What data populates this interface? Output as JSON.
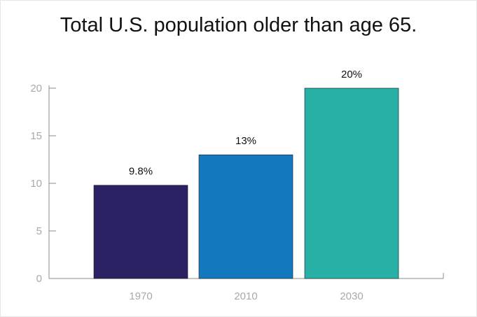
{
  "chart_data": {
    "type": "bar",
    "title": "Total U.S. population older than age 65.",
    "categories": [
      "1970",
      "2010",
      "2030"
    ],
    "values": [
      9.8,
      13,
      20
    ],
    "data_labels": [
      "9.8%",
      "13%",
      "20%"
    ],
    "colors": [
      "#2a2262",
      "#1478be",
      "#28b0a6"
    ],
    "ylim": [
      0,
      20
    ],
    "yticks": [
      0,
      5,
      10,
      15,
      20
    ],
    "xlabel": "",
    "ylabel": "",
    "grid": false,
    "legend": "none"
  }
}
